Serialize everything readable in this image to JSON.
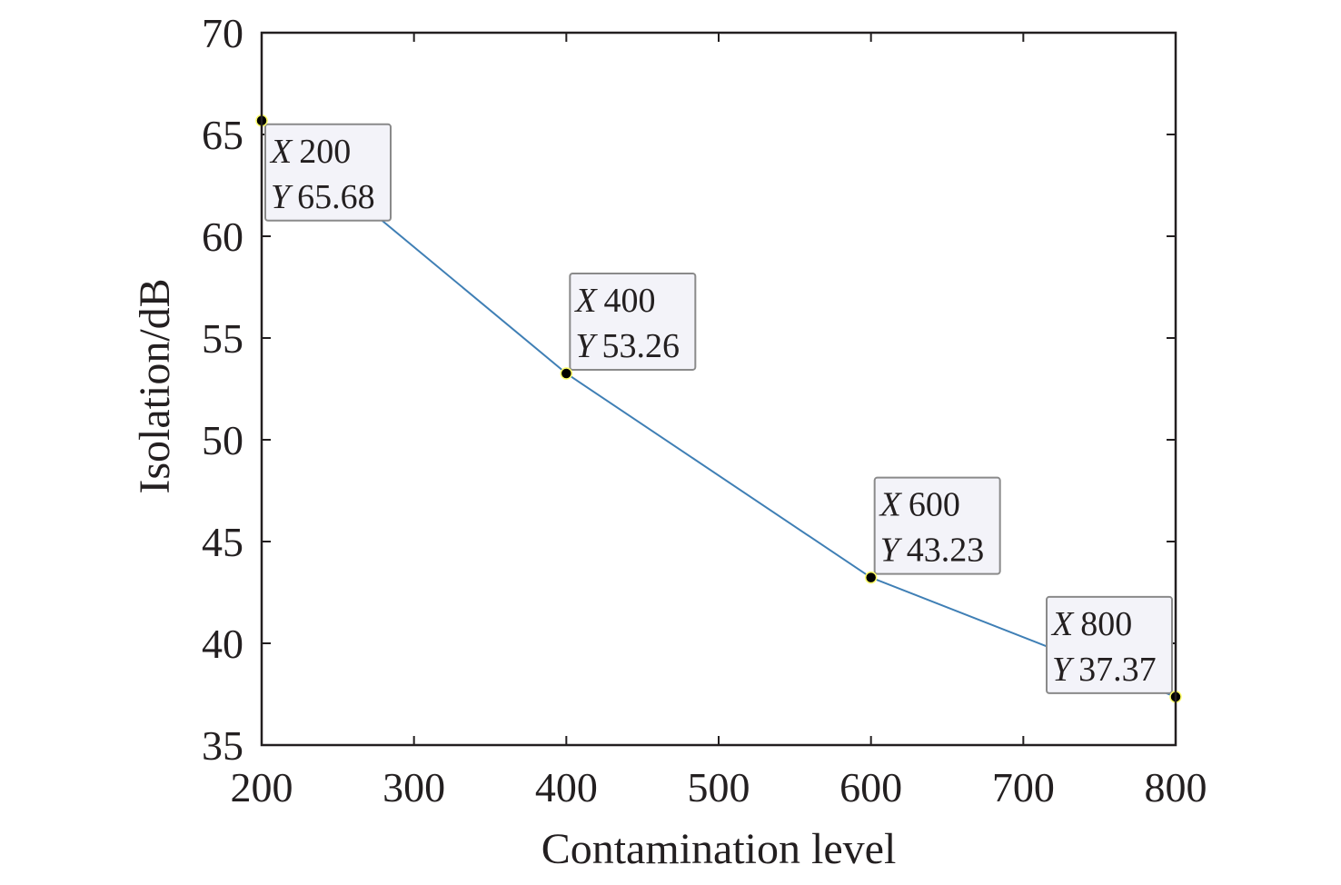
{
  "chart_data": {
    "type": "line",
    "title": "",
    "xlabel": "Contamination level",
    "ylabel": "Isolation/dB",
    "xlim": [
      200,
      800
    ],
    "ylim": [
      35,
      70
    ],
    "xticks": [
      200,
      300,
      400,
      500,
      600,
      700,
      800
    ],
    "yticks": [
      35,
      40,
      45,
      50,
      55,
      60,
      65,
      70
    ],
    "grid": false,
    "series": [
      {
        "name": "Isolation",
        "color": "#3f7fb5",
        "x": [
          200,
          400,
          600,
          800
        ],
        "y": [
          65.68,
          53.26,
          43.23,
          37.37
        ]
      }
    ],
    "annotations": [
      {
        "x_label": "X",
        "x_value": "200",
        "y_label": "Y",
        "y_value": "65.68"
      },
      {
        "x_label": "X",
        "x_value": "400",
        "y_label": "Y",
        "y_value": "53.26"
      },
      {
        "x_label": "X",
        "x_value": "600",
        "y_label": "Y",
        "y_value": "43.23"
      },
      {
        "x_label": "X",
        "x_value": "800",
        "y_label": "Y",
        "y_value": "37.37"
      }
    ]
  }
}
